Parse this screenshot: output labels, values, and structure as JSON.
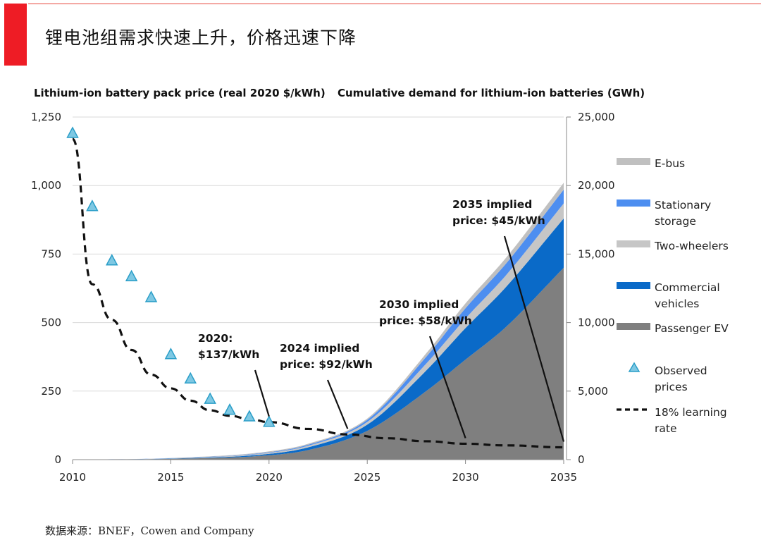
{
  "page_title": "锂电池组需求快速上升，价格迅速下降",
  "source_note": "数据来源：BNEF，Cowen and Company",
  "colors": {
    "ebus": "#c0c0c0",
    "stationary": "#4d8ef0",
    "two_wheelers": "#c6c6c6",
    "commercial": "#0a6ac8",
    "passenger": "#7f7f7f",
    "observed_fill": "#7ec8e3",
    "observed_stroke": "#2a9ec8",
    "curve": "#111111",
    "brand_red": "#ee1c25"
  },
  "chart_data": {
    "type": "area",
    "left_axis": {
      "title": "Lithium-ion battery pack price (real 2020 $/kWh)",
      "range": [
        0,
        1250
      ],
      "ticks": [
        0,
        250,
        500,
        750,
        1000,
        1250
      ],
      "tick_labels": [
        "0",
        "250",
        "500",
        "750",
        "1,000",
        "1,250"
      ]
    },
    "right_axis": {
      "title": "Cumulative demand for lithium-ion batteries (GWh)",
      "range": [
        0,
        25000
      ],
      "ticks": [
        0,
        5000,
        10000,
        15000,
        20000,
        25000
      ],
      "tick_labels": [
        "0",
        "5,000",
        "10,000",
        "15,000",
        "20,000",
        "25,000"
      ]
    },
    "x_axis": {
      "range": [
        2010,
        2035
      ],
      "ticks": [
        2010,
        2015,
        2020,
        2025,
        2030,
        2035
      ],
      "tick_labels": [
        "2010",
        "2015",
        "2020",
        "2025",
        "2030",
        "2035"
      ]
    },
    "stacked_series_x": [
      2010,
      2015,
      2020,
      2022,
      2025,
      2028,
      2030,
      2032,
      2035
    ],
    "stacked_series": [
      {
        "name": "Passenger EV",
        "color_key": "passenger",
        "values": [
          0,
          60,
          320,
          700,
          2100,
          5000,
          7300,
          9600,
          14000
        ]
      },
      {
        "name": "Commercial vehicles",
        "color_key": "commercial",
        "values": [
          0,
          20,
          100,
          200,
          450,
          1500,
          2300,
          2900,
          3600
        ]
      },
      {
        "name": "Two-wheelers",
        "color_key": "two_wheelers",
        "values": [
          0,
          20,
          80,
          120,
          200,
          500,
          700,
          850,
          1100
        ]
      },
      {
        "name": "Stationary storage",
        "color_key": "stationary",
        "values": [
          0,
          10,
          40,
          70,
          150,
          500,
          750,
          850,
          1000
        ]
      },
      {
        "name": "E-bus",
        "color_key": "ebus",
        "values": [
          0,
          10,
          60,
          70,
          100,
          250,
          350,
          420,
          500
        ]
      }
    ],
    "observed_prices": {
      "name": "Observed prices",
      "x": [
        2010,
        2011,
        2012,
        2013,
        2014,
        2015,
        2016,
        2017,
        2018,
        2019,
        2020
      ],
      "values": [
        1191,
        924,
        726,
        668,
        592,
        384,
        295,
        221,
        181,
        157,
        137
      ]
    },
    "learning_curve": {
      "name": "18% learning rate",
      "x": [
        2010,
        2011,
        2012,
        2013,
        2014,
        2015,
        2016,
        2017,
        2018,
        2019,
        2020,
        2022,
        2024,
        2026,
        2028,
        2030,
        2032,
        2035
      ],
      "values": [
        1170,
        640,
        510,
        400,
        310,
        260,
        215,
        180,
        160,
        148,
        137,
        112,
        92,
        78,
        67,
        58,
        52,
        45
      ]
    },
    "legend": [
      {
        "label_lines": [
          "E-bus"
        ],
        "kind": "band",
        "color_key": "ebus"
      },
      {
        "label_lines": [
          "Stationary",
          "storage"
        ],
        "kind": "band",
        "color_key": "stationary"
      },
      {
        "label_lines": [
          "Two-wheelers"
        ],
        "kind": "band",
        "color_key": "two_wheelers"
      },
      {
        "label_lines": [
          "Commercial",
          "vehicles"
        ],
        "kind": "band",
        "color_key": "commercial"
      },
      {
        "label_lines": [
          "Passenger EV"
        ],
        "kind": "band",
        "color_key": "passenger"
      },
      {
        "label_lines": [
          "Observed",
          "prices"
        ],
        "kind": "triangle"
      },
      {
        "label_lines": [
          "18% learning",
          "rate"
        ],
        "kind": "dash"
      }
    ],
    "legend_position": "right",
    "annotations": [
      {
        "lines": [
          "2020:",
          "$137/kWh"
        ],
        "point_x": 2020,
        "point_price": 137
      },
      {
        "lines": [
          "2024 implied",
          "price: $92/kWh"
        ],
        "point_x": 2024,
        "point_price": 92
      },
      {
        "lines": [
          "2030 implied",
          "price: $58/kWh"
        ],
        "point_x": 2030,
        "point_price": 58
      },
      {
        "lines": [
          "2035 implied",
          "price: $45/kWh"
        ],
        "point_x": 2035,
        "point_price": 45
      }
    ]
  }
}
